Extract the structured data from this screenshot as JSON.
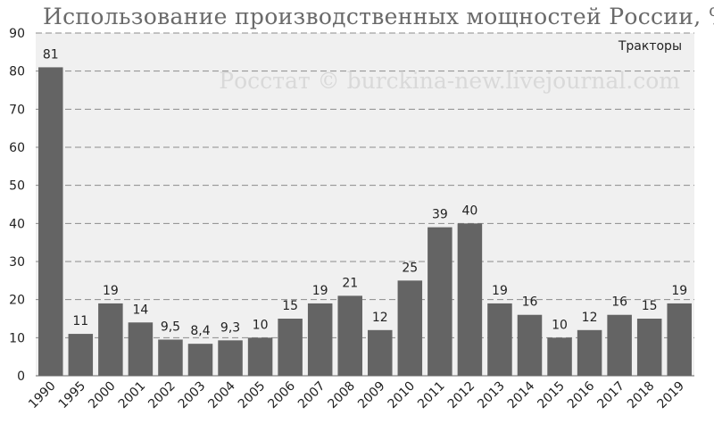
{
  "chart_data": {
    "type": "bar",
    "title": "Использование производственных мощностей России, %",
    "series_label": "Тракторы",
    "watermark": "Росстат © burckina-new.livejournal.com",
    "categories": [
      "1990",
      "1995",
      "2000",
      "2001",
      "2002",
      "2003",
      "2004",
      "2005",
      "2006",
      "2007",
      "2008",
      "2009",
      "2010",
      "2011",
      "2012",
      "2013",
      "2014",
      "2015",
      "2016",
      "2017",
      "2018",
      "2019"
    ],
    "values": [
      81,
      11,
      19,
      14,
      9.5,
      8.4,
      9.3,
      10,
      15,
      19,
      21,
      12,
      25,
      39,
      40,
      19,
      16,
      10,
      12,
      16,
      15,
      19
    ],
    "value_labels": [
      "81",
      "11",
      "19",
      "14",
      "9,5",
      "8,4",
      "9,3",
      "10",
      "15",
      "19",
      "21",
      "12",
      "25",
      "39",
      "40",
      "19",
      "16",
      "10",
      "12",
      "16",
      "15",
      "19"
    ],
    "ylim": [
      0,
      90
    ],
    "yticks": [
      0,
      10,
      20,
      30,
      40,
      50,
      60,
      70,
      80,
      90
    ],
    "grid": true,
    "colors": {
      "bar": "#646464",
      "plot_bg": "#f0f0f0",
      "grid": "#8c8c8c"
    }
  }
}
